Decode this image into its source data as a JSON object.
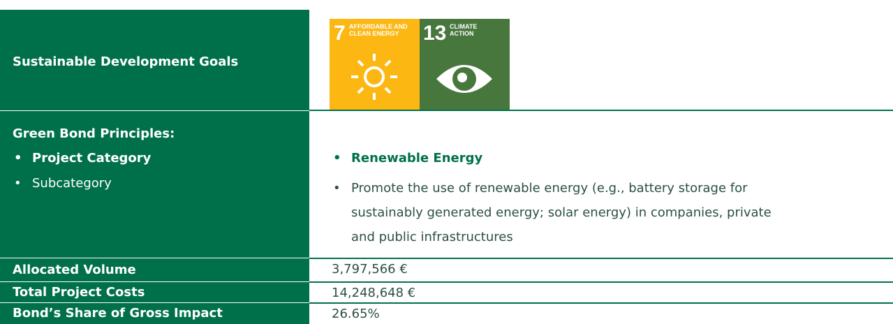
{
  "table": {
    "sdg": {
      "label": "Sustainable Development Goals",
      "icons": [
        {
          "number": "7",
          "lines": [
            "AFFORDABLE AND",
            "CLEAN ENERGY"
          ]
        },
        {
          "number": "13",
          "lines": [
            "CLIMATE",
            "ACTION"
          ]
        }
      ]
    },
    "principles": {
      "label": "Green Bond Principles:",
      "items": [
        "Project Category",
        "Subcategory"
      ],
      "values": [
        "Renewable Energy",
        "Promote the use of renewable energy (e.g., battery storage for sustainably generated energy; solar energy) in companies, private and public infrastructures"
      ]
    },
    "rows": [
      [
        "Allocated Volume",
        "3,797,566 €"
      ],
      [
        "Total Project Costs",
        "14,248,648 €"
      ],
      [
        "Bond’s Share of Gross Impact",
        "26.65%"
      ]
    ]
  }
}
